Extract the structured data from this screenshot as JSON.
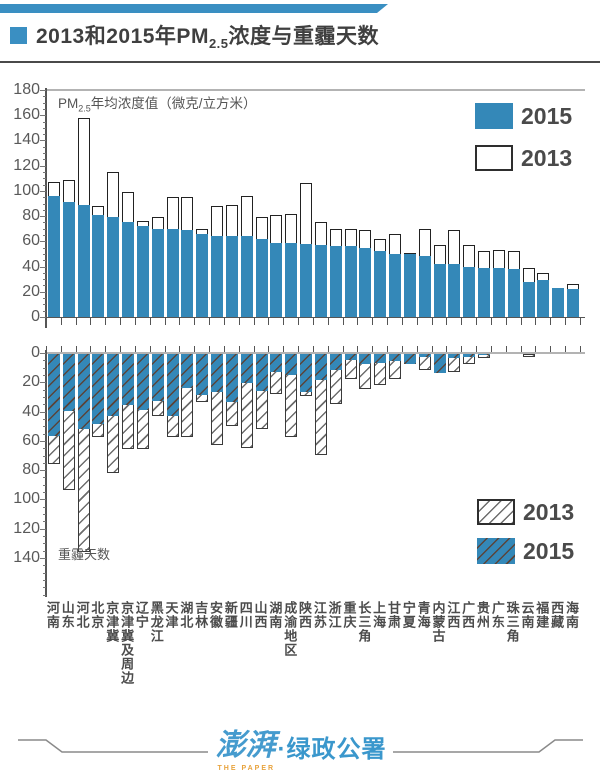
{
  "header": {
    "title_prefix": "2013和2015年PM",
    "title_sub": "2.5",
    "title_suffix": "浓度与重霾天数"
  },
  "top_chart": {
    "axis_title_prefix": "PM",
    "axis_title_sub": "2.5",
    "axis_title_suffix": "年均浓度值（微克/立方米）",
    "legend": [
      {
        "label": "2015",
        "swatch": "solid-blue"
      },
      {
        "label": "2013",
        "swatch": "white-outline"
      }
    ]
  },
  "bottom_chart": {
    "axis_note": "重霾天数",
    "legend": [
      {
        "label": "2013",
        "swatch": "white-hatched"
      },
      {
        "label": "2015",
        "swatch": "blue-hatched"
      }
    ]
  },
  "footer": {
    "logo_cn": "澎湃",
    "logo_en": "THE PAPER",
    "separator": "·",
    "brand": "绿政公署"
  },
  "colors": {
    "bar_blue": "#3488b8",
    "banner_blue": "#3a8fc2",
    "logo_blue": "#459bce",
    "logo_orange": "#e8a33d",
    "grid_gray": "#b3b3b3",
    "axis_gray": "#555555",
    "text_dark": "#3f3f3f",
    "text_gray": "#595959"
  },
  "chart_data": [
    {
      "type": "bar",
      "title": "PM2.5年均浓度值（微克/立方米）",
      "ylabel": "PM2.5年均浓度值（微克/立方米）",
      "ylim": [
        0,
        180
      ],
      "y_ticks": [
        0,
        20,
        40,
        60,
        80,
        100,
        120,
        140,
        160,
        180
      ],
      "grid": "top-line-at-180-only",
      "legend_position": "top-right",
      "categories": [
        "河南",
        "山东",
        "河北",
        "北京",
        "京津冀",
        "京津冀及周边",
        "辽宁",
        "黑龙江",
        "天津",
        "湖北",
        "吉林",
        "安徽",
        "新疆",
        "四川",
        "山西",
        "湖南",
        "成渝地区",
        "陕西",
        "江苏",
        "浙江",
        "重庆",
        "长三角",
        "上海",
        "甘肃",
        "宁夏",
        "青海",
        "内蒙古",
        "江西",
        "广西",
        "贵州",
        "广东",
        "珠三角",
        "云南",
        "福建",
        "西藏",
        "海南"
      ],
      "series": [
        {
          "name": "2013",
          "style": "white-outlined-bar",
          "values": [
            107,
            109,
            158,
            88,
            115,
            99,
            76,
            79,
            95,
            95,
            70,
            88,
            89,
            96,
            79,
            81,
            82,
            106,
            75,
            70,
            70,
            69,
            62,
            66,
            51,
            70,
            57,
            69,
            57,
            52,
            53,
            52,
            39,
            35,
            23,
            26
          ]
        },
        {
          "name": "2015",
          "style": "solid-blue-bar",
          "values": [
            96,
            91,
            89,
            81,
            79,
            75,
            72,
            70,
            70,
            69,
            66,
            64,
            64,
            64,
            62,
            59,
            59,
            58,
            57,
            56,
            56,
            55,
            52,
            50,
            50,
            48,
            42,
            42,
            40,
            39,
            39,
            38,
            28,
            29,
            23,
            22
          ]
        }
      ]
    },
    {
      "type": "bar",
      "title": "重霾天数",
      "ylabel": "重霾天数",
      "orientation": "downward-from-zero",
      "ylim": [
        0,
        140
      ],
      "y_ticks": [
        0,
        20,
        40,
        60,
        80,
        100,
        120,
        140
      ],
      "legend_position": "bottom-right",
      "categories": [
        "河南",
        "山东",
        "河北",
        "北京",
        "京津冀",
        "京津冀及周边",
        "辽宁",
        "黑龙江",
        "天津",
        "湖北",
        "吉林",
        "安徽",
        "新疆",
        "四川",
        "山西",
        "湖南",
        "成渝地区",
        "陕西",
        "江苏",
        "浙江",
        "重庆",
        "长三角",
        "上海",
        "甘肃",
        "宁夏",
        "青海",
        "内蒙古",
        "江西",
        "广西",
        "贵州",
        "广东",
        "珠三角",
        "云南",
        "福建",
        "西藏",
        "海南"
      ],
      "series": [
        {
          "name": "2013",
          "style": "white-hatched-bar",
          "values": [
            75,
            93,
            135,
            57,
            81,
            65,
            65,
            42,
            57,
            57,
            33,
            62,
            49,
            64,
            51,
            27,
            57,
            29,
            69,
            34,
            17,
            24,
            21,
            17,
            5,
            11,
            12,
            12,
            7,
            3,
            0,
            0,
            2,
            0,
            0,
            0
          ]
        },
        {
          "name": "2015",
          "style": "blue-hatched-bar",
          "values": [
            56,
            39,
            51,
            48,
            42,
            35,
            38,
            32,
            42,
            23,
            28,
            26,
            33,
            20,
            25,
            12,
            14,
            26,
            18,
            11,
            4,
            7,
            6,
            5,
            7,
            2,
            13,
            3,
            2,
            1,
            0,
            0,
            0,
            0,
            0,
            0
          ]
        }
      ]
    }
  ]
}
